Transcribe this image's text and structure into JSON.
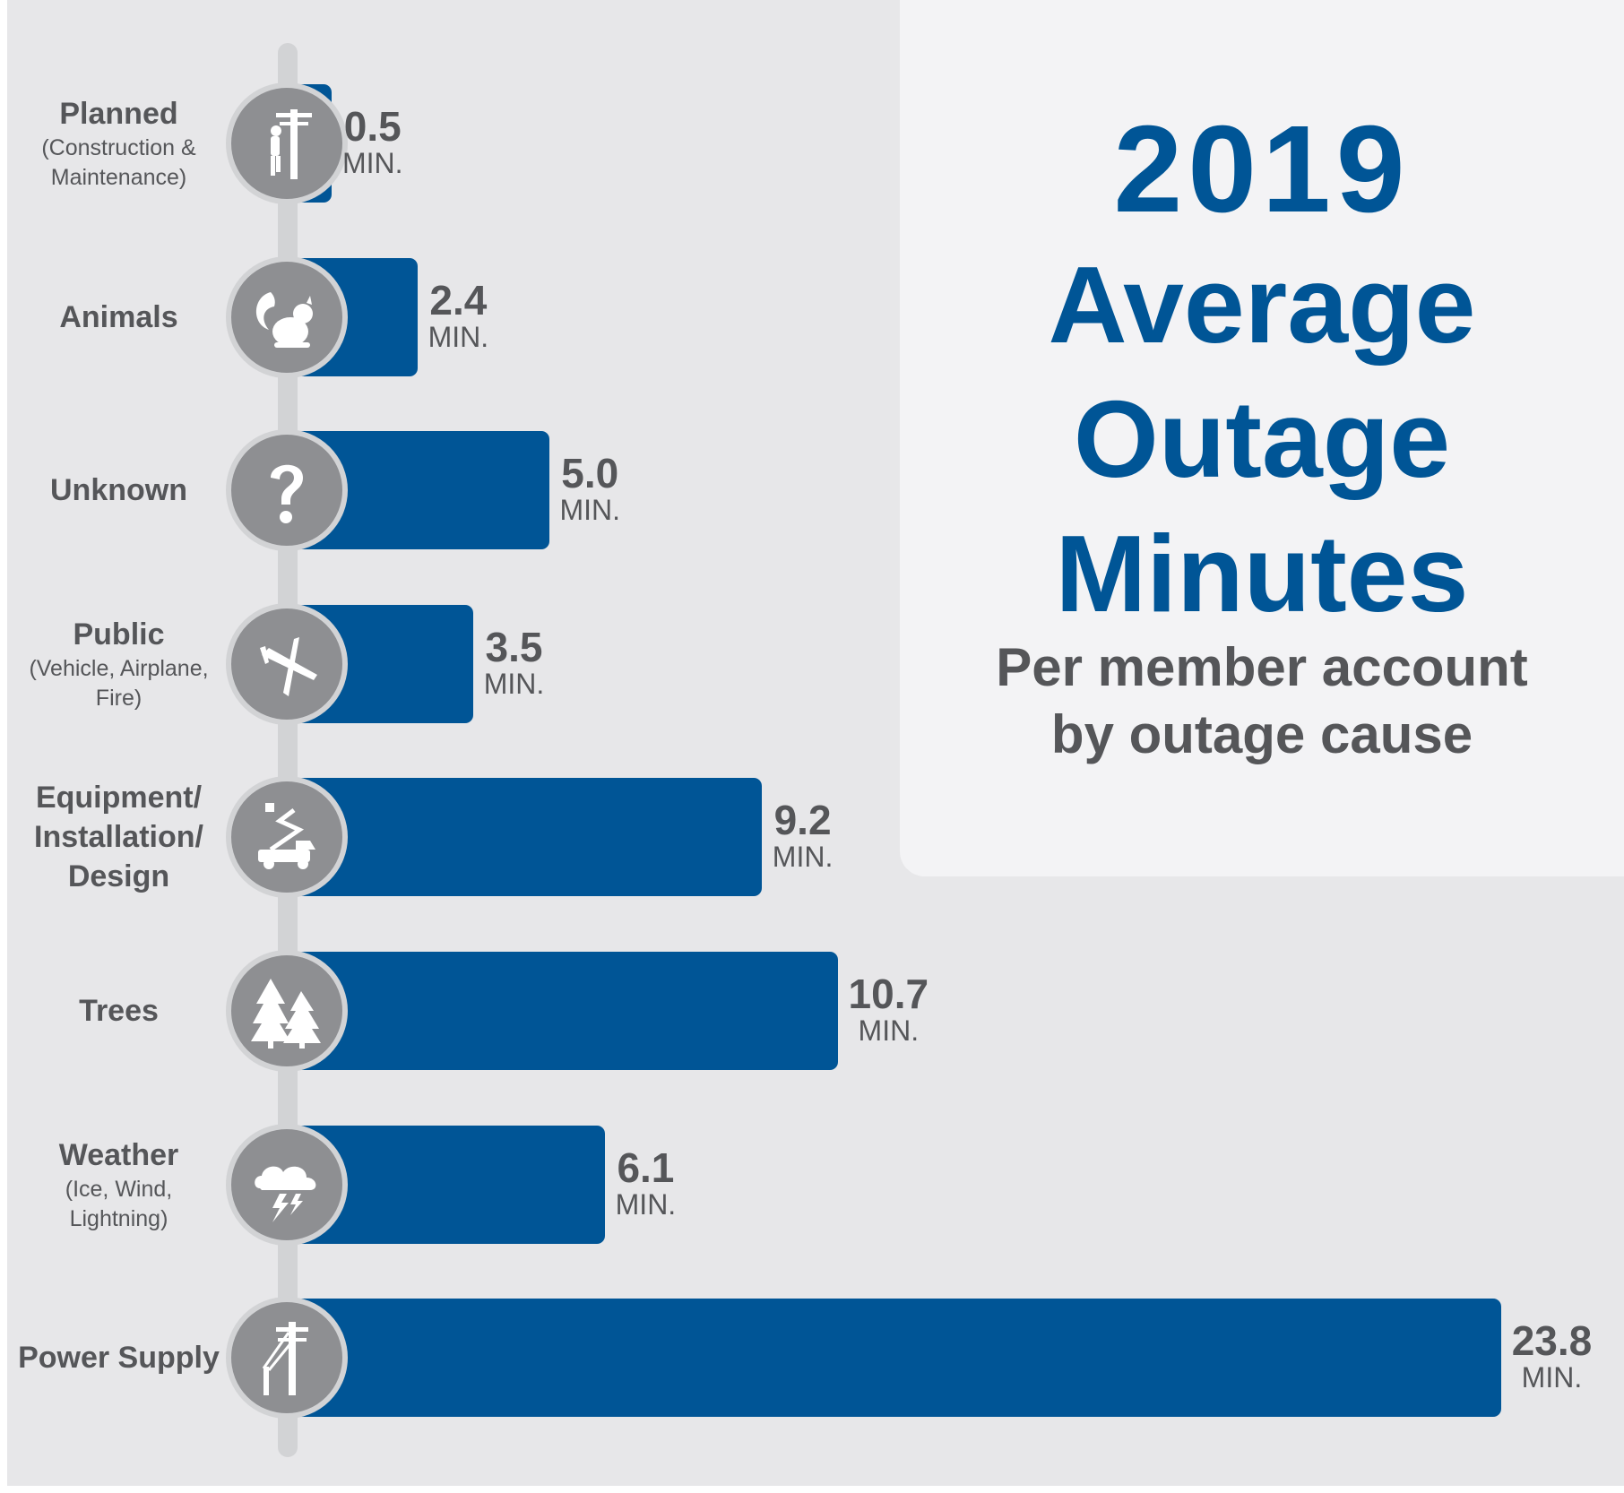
{
  "title": {
    "year": "2019",
    "line1": "Average",
    "line2": "Outage",
    "line3": "Minutes",
    "subtitle_line1": "Per member account",
    "subtitle_line2": "by outage cause"
  },
  "unit_label": "MIN.",
  "colors": {
    "bar": "#005596",
    "icon_circle": "#8e8f92",
    "icon_ring": "#d2d3d5",
    "text_gray": "#555659",
    "background": "#e7e7e9",
    "title_panel": "#f3f3f5",
    "spine": "#d2d3d5"
  },
  "chart_data": {
    "type": "bar",
    "orientation": "horizontal",
    "title": "2019 Average Outage Minutes",
    "subtitle": "Per member account by outage cause",
    "xlabel": "",
    "ylabel": "",
    "grid": false,
    "legend": "none",
    "categories": [
      {
        "label": "Planned",
        "sub": "(Construction & Maintenance)",
        "icon": "utility-pole-worker-icon"
      },
      {
        "label": "Animals",
        "sub": "",
        "icon": "squirrel-icon"
      },
      {
        "label": "Unknown",
        "sub": "",
        "icon": "question-mark-icon"
      },
      {
        "label": "Public",
        "sub": "(Vehicle, Airplane, Fire)",
        "icon": "airplane-icon"
      },
      {
        "label": "Equipment/ Installation/ Design",
        "sub": "",
        "icon": "bucket-truck-icon"
      },
      {
        "label": "Trees",
        "sub": "",
        "icon": "trees-icon"
      },
      {
        "label": "Weather",
        "sub": "(Ice, Wind, Lightning)",
        "icon": "storm-cloud-icon"
      },
      {
        "label": "Power Supply",
        "sub": "",
        "icon": "power-lines-icon"
      }
    ],
    "values": [
      0.5,
      2.4,
      5.0,
      3.5,
      9.2,
      10.7,
      6.1,
      23.8
    ],
    "value_labels": [
      "0.5",
      "2.4",
      "5.0",
      "3.5",
      "9.2",
      "10.7",
      "6.1",
      "23.8"
    ]
  }
}
